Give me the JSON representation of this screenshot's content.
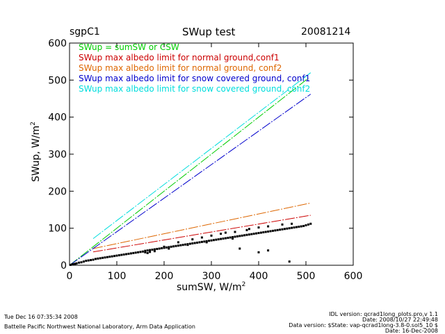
{
  "header": {
    "site": "sgpC1",
    "title": "SWup test",
    "date": "20081214"
  },
  "footer": {
    "left_line1": "Tue Dec 16 07:35:34 2008",
    "left_line2": "Battelle Pacific Northwest National Laboratory, Arm Data Application",
    "right_line1": "IDL version: qcrad1long_plots.pro,v 1.1",
    "right_line2": "Date: 2008/10/27 22:49:48",
    "right_line3": "Data version: $State: vap-qcrad1long-3.8-0.sol5_10 $",
    "right_line4": "Date: 16-Dec-2008"
  },
  "chart_data": {
    "type": "scatter",
    "xlabel": "sumSW, W/m",
    "ylabel": "SWup, W/m",
    "label_superscript": "2",
    "xlim": [
      0,
      600
    ],
    "ylim": [
      0,
      600
    ],
    "xticks": [
      0,
      100,
      200,
      300,
      400,
      500,
      600
    ],
    "yticks": [
      0,
      100,
      200,
      300,
      400,
      500,
      600
    ],
    "grid": false,
    "legend_position": "top-left",
    "legend": [
      {
        "label": "SWup = sumSW or CSW",
        "color": "#00cc00"
      },
      {
        "label": "SWup max albedo limit for normal ground,conf1",
        "color": "#cc0000"
      },
      {
        "label": "SWup max albedo limit for normal ground, conf2",
        "color": "#dd6600"
      },
      {
        "label": "SWup max albedo limit for snow covered ground, conf1",
        "color": "#0000cc"
      },
      {
        "label": "SWup max albedo limit for snow covered ground, conf2",
        "color": "#00dddd"
      }
    ],
    "series": [
      {
        "name": "SWup = sumSW or CSW",
        "kind": "line",
        "color": "#00cc00",
        "points": [
          [
            0,
            0
          ],
          [
            505,
            505
          ]
        ]
      },
      {
        "name": "SWup max albedo limit for normal ground,conf1",
        "kind": "line",
        "color": "#cc0000",
        "points": [
          [
            50,
            36
          ],
          [
            510,
            135
          ]
        ]
      },
      {
        "name": "SWup max albedo limit for normal ground, conf2",
        "kind": "line",
        "color": "#dd6600",
        "points": [
          [
            50,
            45
          ],
          [
            510,
            168
          ]
        ]
      },
      {
        "name": "SWup max albedo limit for snow covered ground, conf1",
        "kind": "line",
        "color": "#0000cc",
        "points": [
          [
            0,
            0
          ],
          [
            510,
            462
          ]
        ]
      },
      {
        "name": "SWup max albedo limit for snow covered ground, conf2",
        "kind": "line",
        "color": "#00dddd",
        "points": [
          [
            50,
            72
          ],
          [
            510,
            520
          ]
        ]
      },
      {
        "name": "observations",
        "kind": "scatter",
        "color": "#000000",
        "points": [
          [
            2,
            1
          ],
          [
            5,
            2
          ],
          [
            8,
            3
          ],
          [
            12,
            4
          ],
          [
            15,
            5
          ],
          [
            20,
            7
          ],
          [
            25,
            8
          ],
          [
            30,
            10
          ],
          [
            35,
            12
          ],
          [
            40,
            13
          ],
          [
            45,
            14
          ],
          [
            50,
            15
          ],
          [
            55,
            17
          ],
          [
            60,
            18
          ],
          [
            65,
            19
          ],
          [
            70,
            20
          ],
          [
            75,
            21
          ],
          [
            80,
            22
          ],
          [
            85,
            23
          ],
          [
            90,
            24
          ],
          [
            95,
            25
          ],
          [
            100,
            26
          ],
          [
            105,
            27
          ],
          [
            110,
            28
          ],
          [
            115,
            29
          ],
          [
            120,
            30
          ],
          [
            125,
            31
          ],
          [
            130,
            32
          ],
          [
            135,
            33
          ],
          [
            140,
            34
          ],
          [
            145,
            35
          ],
          [
            150,
            36
          ],
          [
            155,
            37
          ],
          [
            160,
            39
          ],
          [
            165,
            40
          ],
          [
            170,
            41
          ],
          [
            175,
            42
          ],
          [
            180,
            43
          ],
          [
            185,
            44
          ],
          [
            190,
            45
          ],
          [
            195,
            46
          ],
          [
            200,
            47
          ],
          [
            205,
            48
          ],
          [
            210,
            49
          ],
          [
            215,
            50
          ],
          [
            220,
            51
          ],
          [
            225,
            52
          ],
          [
            230,
            53
          ],
          [
            235,
            54
          ],
          [
            240,
            55
          ],
          [
            245,
            56
          ],
          [
            250,
            57
          ],
          [
            255,
            58
          ],
          [
            260,
            59
          ],
          [
            265,
            60
          ],
          [
            270,
            61
          ],
          [
            275,
            62
          ],
          [
            280,
            63
          ],
          [
            285,
            64
          ],
          [
            290,
            65
          ],
          [
            295,
            66
          ],
          [
            300,
            67
          ],
          [
            305,
            68
          ],
          [
            310,
            69
          ],
          [
            315,
            70
          ],
          [
            320,
            71
          ],
          [
            325,
            72
          ],
          [
            330,
            73
          ],
          [
            335,
            74
          ],
          [
            340,
            75
          ],
          [
            345,
            76
          ],
          [
            350,
            77
          ],
          [
            355,
            78
          ],
          [
            360,
            79
          ],
          [
            365,
            80
          ],
          [
            370,
            81
          ],
          [
            375,
            82
          ],
          [
            380,
            83
          ],
          [
            385,
            84
          ],
          [
            390,
            85
          ],
          [
            395,
            86
          ],
          [
            400,
            87
          ],
          [
            405,
            88
          ],
          [
            410,
            89
          ],
          [
            415,
            90
          ],
          [
            420,
            91
          ],
          [
            425,
            92
          ],
          [
            430,
            93
          ],
          [
            435,
            94
          ],
          [
            440,
            95
          ],
          [
            445,
            96
          ],
          [
            450,
            97
          ],
          [
            455,
            98
          ],
          [
            460,
            99
          ],
          [
            465,
            100
          ],
          [
            470,
            101
          ],
          [
            475,
            102
          ],
          [
            480,
            103
          ],
          [
            485,
            104
          ],
          [
            490,
            105
          ],
          [
            495,
            106
          ],
          [
            500,
            108
          ],
          [
            505,
            110
          ],
          [
            510,
            112
          ],
          [
            230,
            62
          ],
          [
            260,
            70
          ],
          [
            280,
            75
          ],
          [
            300,
            80
          ],
          [
            320,
            85
          ],
          [
            330,
            88
          ],
          [
            350,
            90
          ],
          [
            375,
            95
          ],
          [
            380,
            98
          ],
          [
            400,
            102
          ],
          [
            420,
            105
          ],
          [
            450,
            110
          ],
          [
            470,
            112
          ],
          [
            160,
            35
          ],
          [
            165,
            33
          ],
          [
            170,
            36
          ],
          [
            180,
            38
          ],
          [
            200,
            50
          ],
          [
            210,
            45
          ],
          [
            250,
            55
          ],
          [
            290,
            62
          ],
          [
            345,
            72
          ],
          [
            360,
            45
          ],
          [
            400,
            35
          ],
          [
            420,
            40
          ],
          [
            465,
            10
          ]
        ]
      }
    ]
  }
}
